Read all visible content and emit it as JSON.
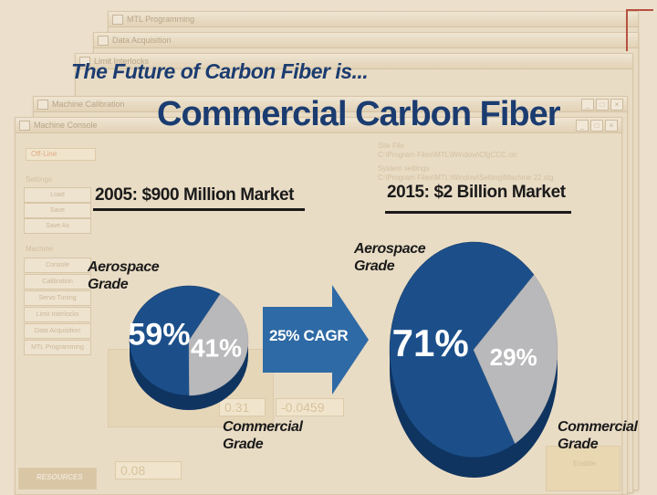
{
  "background": {
    "windows": [
      {
        "title": "MTL Programming"
      },
      {
        "title": "Data Acquisition"
      },
      {
        "title": "Limit Interlocks"
      },
      {
        "title": "Machine Calibration"
      },
      {
        "title": "Machine Console"
      }
    ],
    "console": {
      "status": "Off-Line",
      "settings_label": "Settings",
      "settings_buttons": [
        "Load",
        "Save",
        "Save As"
      ],
      "machine_label": "Machine",
      "machine_buttons": [
        "Console",
        "Calibration",
        "Servo Tuning",
        "Limit Interlocks",
        "Data Acquisition",
        "MTL Programming"
      ],
      "file_label": "Site File",
      "file_path": "C:\\Program Files\\MTL\\Window\\CfgCCC.cic",
      "system_label": "System settings",
      "system_path": "C:\\Program Files\\MTL\\Window\\Setting\\Machine 22.stg",
      "readouts": [
        "0.31",
        "-0.0459",
        "0.08"
      ],
      "logo_text": "RESOURCES",
      "enable_label": "Enable"
    }
  },
  "slide": {
    "title_small": "The Future of Carbon Fiber is...",
    "title_large": "Commercial Carbon Fiber",
    "cagr_text": "25% CAGR"
  },
  "colors": {
    "aerospace": "#b9b9bb",
    "commercial": "#1c4f8a",
    "commercial_side": "#0f3460",
    "arrow": "#2e6aa5"
  },
  "chart_data": [
    {
      "type": "pie",
      "title": "2005: $900 Million Market",
      "categories": [
        "Aerospace Grade",
        "Commercial Grade"
      ],
      "values": [
        41,
        59
      ],
      "value_labels": [
        "41%",
        "59%"
      ],
      "labels": {
        "aerospace": [
          "Aerospace",
          "Grade"
        ],
        "commercial": [
          "Commercial",
          "Grade"
        ]
      }
    },
    {
      "type": "pie",
      "title": "2015: $2 Billion Market",
      "categories": [
        "Aerospace Grade",
        "Commercial Grade"
      ],
      "values": [
        29,
        71
      ],
      "value_labels": [
        "29%",
        "71%"
      ],
      "labels": {
        "aerospace": [
          "Aerospace",
          "Grade"
        ],
        "commercial": [
          "Commercial",
          "Grade"
        ]
      }
    }
  ]
}
